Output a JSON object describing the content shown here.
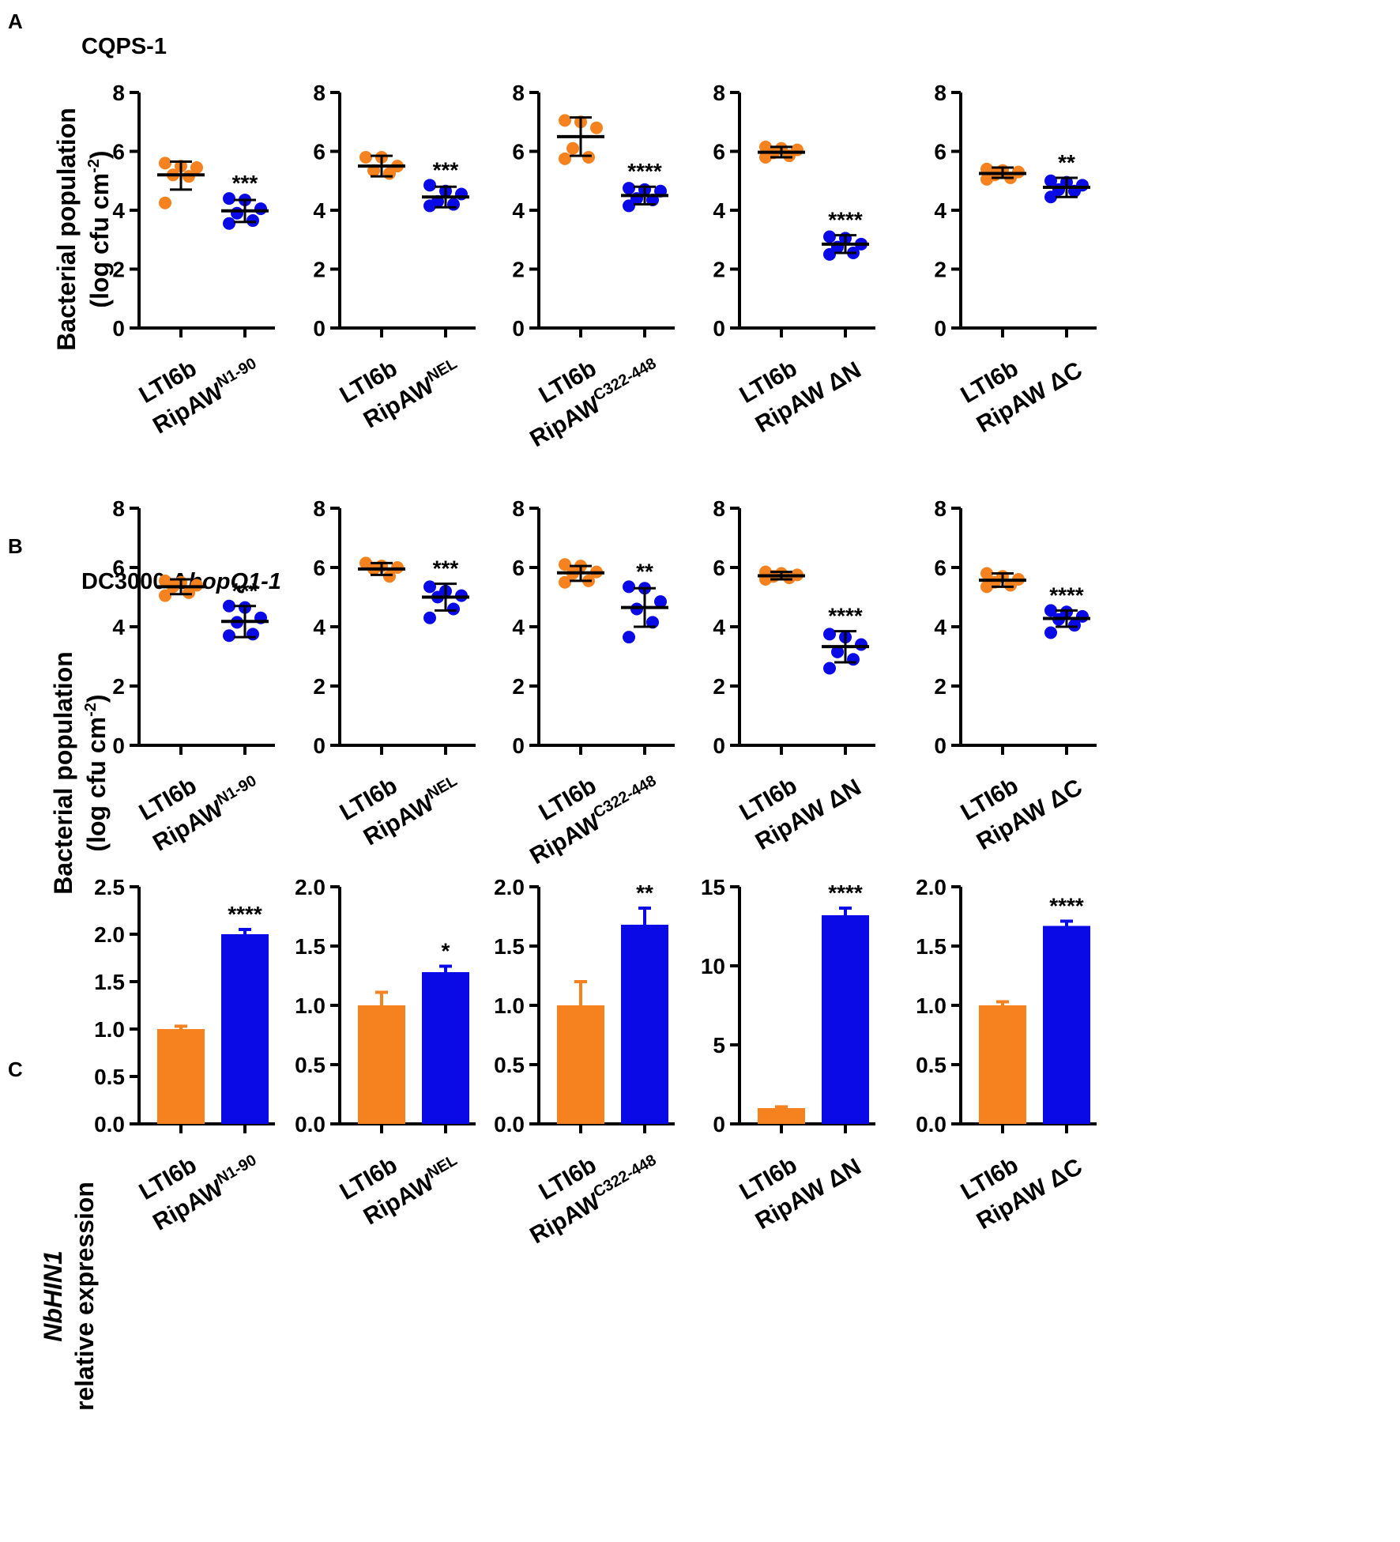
{
  "colors": {
    "control": "#F5821F",
    "treatment": "#0A0AE6",
    "axis": "#000000"
  },
  "panels": [
    {
      "letter": "A",
      "title": "CQPS-1"
    },
    {
      "letter": "B",
      "title_main": "DC3000 Δ",
      "title_italic": "hopQ1-1"
    },
    {
      "letter": "C"
    }
  ],
  "y_labels": {
    "A": {
      "line1": "Bacterial population",
      "line2_pre": "(log cfu cm",
      "line2_sup": "-2",
      "line2_post": ")"
    },
    "B": {
      "line1": "Bacterial population",
      "line2_pre": "(log cfu cm",
      "line2_sup": "-2",
      "line2_post": ")"
    },
    "C": {
      "line1": "NbHIN1",
      "line2": "relative expression"
    }
  },
  "category_labels": [
    {
      "first": "LTI6b",
      "second_main": "RipAW",
      "second_sup": "N1-90"
    },
    {
      "first": "LTI6b",
      "second_main": "RipAW",
      "second_sup": "NEL"
    },
    {
      "first": "LTI6b",
      "second_main": "RipAW",
      "second_sup": "C322-448"
    },
    {
      "first": "LTI6b",
      "second_main": "RipAW ΔN",
      "second_sup": ""
    },
    {
      "first": "LTI6b",
      "second_main": "RipAW ΔC",
      "second_sup": ""
    }
  ],
  "chart_data": [
    {
      "panel": "A",
      "index": 0,
      "type": "scatter",
      "ylim": [
        0,
        8
      ],
      "ticks": [
        0,
        2,
        4,
        6,
        8
      ],
      "tick_labels": [
        "0",
        "2",
        "4",
        "6",
        "8"
      ],
      "categories": [
        "LTI6b",
        "RipAW N1-90"
      ],
      "series": [
        {
          "name": "LTI6b",
          "points": [
            5.6,
            5.5,
            5.45,
            5.2,
            5.15,
            4.25
          ],
          "mean": 5.2,
          "err": [
            4.7,
            5.65
          ]
        },
        {
          "name": "RipAW N1-90",
          "points": [
            4.4,
            4.35,
            4.05,
            3.9,
            3.65,
            3.55
          ],
          "mean": 3.98,
          "err": [
            3.6,
            4.35
          ]
        }
      ],
      "significance": "***"
    },
    {
      "panel": "A",
      "index": 1,
      "type": "scatter",
      "ylim": [
        0,
        8
      ],
      "ticks": [
        0,
        2,
        4,
        6,
        8
      ],
      "tick_labels": [
        "0",
        "2",
        "4",
        "6",
        "8"
      ],
      "categories": [
        "LTI6b",
        "RipAW NEL"
      ],
      "series": [
        {
          "name": "LTI6b",
          "points": [
            5.8,
            5.8,
            5.5,
            5.35,
            5.25
          ],
          "mean": 5.5,
          "err": [
            5.15,
            5.85
          ]
        },
        {
          "name": "RipAW NEL",
          "points": [
            4.85,
            4.65,
            4.55,
            4.3,
            4.2,
            4.15
          ],
          "mean": 4.45,
          "err": [
            4.1,
            4.8
          ]
        }
      ],
      "significance": "***"
    },
    {
      "panel": "A",
      "index": 2,
      "type": "scatter",
      "ylim": [
        0,
        8
      ],
      "ticks": [
        0,
        2,
        4,
        6,
        8
      ],
      "tick_labels": [
        "0",
        "2",
        "4",
        "6",
        "8"
      ],
      "categories": [
        "LTI6b",
        "RipAW C322-448"
      ],
      "series": [
        {
          "name": "LTI6b",
          "points": [
            7.05,
            7.0,
            6.8,
            6.1,
            5.8,
            5.75
          ],
          "mean": 6.5,
          "err": [
            5.85,
            7.15
          ]
        },
        {
          "name": "RipAW C322-448",
          "points": [
            4.75,
            4.7,
            4.65,
            4.4,
            4.35,
            4.15
          ],
          "mean": 4.5,
          "err": [
            4.2,
            4.8
          ]
        }
      ],
      "significance": "****"
    },
    {
      "panel": "A",
      "index": 3,
      "type": "scatter",
      "ylim": [
        0,
        8
      ],
      "ticks": [
        0,
        2,
        4,
        6,
        8
      ],
      "tick_labels": [
        "0",
        "2",
        "4",
        "6",
        "8"
      ],
      "categories": [
        "LTI6b",
        "RipAW ΔN"
      ],
      "series": [
        {
          "name": "LTI6b",
          "points": [
            6.15,
            6.1,
            6.05,
            5.95,
            5.85,
            5.8
          ],
          "mean": 5.97,
          "err": [
            5.8,
            6.15
          ]
        },
        {
          "name": "RipAW ΔN",
          "points": [
            3.1,
            3.05,
            2.85,
            2.75,
            2.55,
            2.5
          ],
          "mean": 2.85,
          "err": [
            2.55,
            3.15
          ]
        }
      ],
      "significance": "****"
    },
    {
      "panel": "A",
      "index": 4,
      "type": "scatter",
      "ylim": [
        0,
        8
      ],
      "ticks": [
        0,
        2,
        4,
        6,
        8
      ],
      "tick_labels": [
        "0",
        "2",
        "4",
        "6",
        "8"
      ],
      "categories": [
        "LTI6b",
        "RipAW ΔC"
      ],
      "series": [
        {
          "name": "LTI6b",
          "points": [
            5.4,
            5.35,
            5.3,
            5.2,
            5.1,
            5.05
          ],
          "mean": 5.25,
          "err": [
            5.1,
            5.45
          ]
        },
        {
          "name": "RipAW ΔC",
          "points": [
            5.0,
            4.95,
            4.85,
            4.7,
            4.65,
            4.45
          ],
          "mean": 4.78,
          "err": [
            4.45,
            5.1
          ]
        }
      ],
      "significance": "**"
    },
    {
      "panel": "B",
      "index": 0,
      "type": "scatter",
      "ylim": [
        0,
        8
      ],
      "ticks": [
        0,
        2,
        4,
        6,
        8
      ],
      "tick_labels": [
        "0",
        "2",
        "4",
        "6",
        "8"
      ],
      "categories": [
        "LTI6b",
        "RipAW N1-90"
      ],
      "series": [
        {
          "name": "LTI6b",
          "points": [
            5.55,
            5.5,
            5.4,
            5.35,
            5.15,
            5.05
          ],
          "mean": 5.35,
          "err": [
            5.1,
            5.6
          ]
        },
        {
          "name": "RipAW N1-90",
          "points": [
            4.7,
            4.65,
            4.3,
            4.15,
            3.75,
            3.7
          ],
          "mean": 4.18,
          "err": [
            3.65,
            4.7
          ]
        }
      ],
      "significance": "***"
    },
    {
      "panel": "B",
      "index": 1,
      "type": "scatter",
      "ylim": [
        0,
        8
      ],
      "ticks": [
        0,
        2,
        4,
        6,
        8
      ],
      "tick_labels": [
        "0",
        "2",
        "4",
        "6",
        "8"
      ],
      "categories": [
        "LTI6b",
        "RipAW NEL"
      ],
      "series": [
        {
          "name": "LTI6b",
          "points": [
            6.15,
            6.05,
            6.0,
            5.95,
            5.7
          ],
          "mean": 5.95,
          "err": [
            5.75,
            6.15
          ]
        },
        {
          "name": "RipAW NEL",
          "points": [
            5.35,
            5.2,
            5.05,
            5.0,
            4.6,
            4.3
          ],
          "mean": 5.0,
          "err": [
            4.55,
            5.45
          ]
        }
      ],
      "significance": "***"
    },
    {
      "panel": "B",
      "index": 2,
      "type": "scatter",
      "ylim": [
        0,
        8
      ],
      "ticks": [
        0,
        2,
        4,
        6,
        8
      ],
      "tick_labels": [
        "0",
        "2",
        "4",
        "6",
        "8"
      ],
      "categories": [
        "LTI6b",
        "RipAW C322-448"
      ],
      "series": [
        {
          "name": "LTI6b",
          "points": [
            6.1,
            6.05,
            5.85,
            5.8,
            5.55,
            5.5
          ],
          "mean": 5.82,
          "err": [
            5.55,
            6.05
          ]
        },
        {
          "name": "RipAW C322-448",
          "points": [
            5.35,
            5.3,
            4.85,
            4.6,
            4.15,
            3.65
          ],
          "mean": 4.65,
          "err": [
            4.0,
            5.3
          ]
        }
      ],
      "significance": "**"
    },
    {
      "panel": "B",
      "index": 3,
      "type": "scatter",
      "ylim": [
        0,
        8
      ],
      "ticks": [
        0,
        2,
        4,
        6,
        8
      ],
      "tick_labels": [
        "0",
        "2",
        "4",
        "6",
        "8"
      ],
      "categories": [
        "LTI6b",
        "RipAW ΔN"
      ],
      "series": [
        {
          "name": "LTI6b",
          "points": [
            5.85,
            5.8,
            5.75,
            5.7,
            5.65,
            5.6
          ],
          "mean": 5.72,
          "err": [
            5.6,
            5.85
          ]
        },
        {
          "name": "RipAW ΔN",
          "points": [
            3.75,
            3.65,
            3.4,
            3.15,
            2.9,
            2.6
          ],
          "mean": 3.33,
          "err": [
            2.8,
            3.85
          ]
        }
      ],
      "significance": "****"
    },
    {
      "panel": "B",
      "index": 4,
      "type": "scatter",
      "ylim": [
        0,
        8
      ],
      "ticks": [
        0,
        2,
        4,
        6,
        8
      ],
      "tick_labels": [
        "0",
        "2",
        "4",
        "6",
        "8"
      ],
      "categories": [
        "LTI6b",
        "RipAW ΔC"
      ],
      "series": [
        {
          "name": "LTI6b",
          "points": [
            5.8,
            5.7,
            5.6,
            5.5,
            5.4,
            5.35
          ],
          "mean": 5.57,
          "err": [
            5.35,
            5.8
          ]
        },
        {
          "name": "RipAW ΔC",
          "points": [
            4.55,
            4.5,
            4.35,
            4.25,
            4.05,
            3.8
          ],
          "mean": 4.28,
          "err": [
            4.0,
            4.55
          ]
        }
      ],
      "significance": "****"
    },
    {
      "panel": "C",
      "index": 0,
      "type": "bar",
      "ylim": [
        0,
        2.5
      ],
      "ticks": [
        0,
        0.5,
        1,
        1.5,
        2,
        2.5
      ],
      "tick_labels": [
        "0.0",
        "0.5",
        "1.0",
        "1.5",
        "2.0",
        "2.5"
      ],
      "categories": [
        "LTI6b",
        "RipAW N1-90"
      ],
      "values": [
        1.0,
        2.0
      ],
      "errors": [
        0.03,
        0.05
      ],
      "significance": "****"
    },
    {
      "panel": "C",
      "index": 1,
      "type": "bar",
      "ylim": [
        0,
        2.0
      ],
      "ticks": [
        0,
        0.5,
        1,
        1.5,
        2
      ],
      "tick_labels": [
        "0.0",
        "0.5",
        "1.0",
        "1.5",
        "2.0"
      ],
      "categories": [
        "LTI6b",
        "RipAW NEL"
      ],
      "values": [
        1.0,
        1.28
      ],
      "errors": [
        0.11,
        0.05
      ],
      "significance": "*"
    },
    {
      "panel": "C",
      "index": 2,
      "type": "bar",
      "ylim": [
        0,
        2.0
      ],
      "ticks": [
        0,
        0.5,
        1,
        1.5,
        2
      ],
      "tick_labels": [
        "0.0",
        "0.5",
        "1.0",
        "1.5",
        "2.0"
      ],
      "categories": [
        "LTI6b",
        "RipAW C322-448"
      ],
      "values": [
        1.0,
        1.68
      ],
      "errors": [
        0.2,
        0.14
      ],
      "significance": "**"
    },
    {
      "panel": "C",
      "index": 3,
      "type": "bar",
      "ylim": [
        0,
        15
      ],
      "ticks": [
        0,
        5,
        10,
        15
      ],
      "tick_labels": [
        "0",
        "5",
        "10",
        "15"
      ],
      "categories": [
        "LTI6b",
        "RipAW ΔN"
      ],
      "values": [
        1.0,
        13.2
      ],
      "errors": [
        0.08,
        0.45
      ],
      "significance": "****"
    },
    {
      "panel": "C",
      "index": 4,
      "type": "bar",
      "ylim": [
        0,
        2.0
      ],
      "ticks": [
        0,
        0.5,
        1,
        1.5,
        2
      ],
      "tick_labels": [
        "0.0",
        "0.5",
        "1.0",
        "1.5",
        "2.0"
      ],
      "categories": [
        "LTI6b",
        "RipAW ΔC"
      ],
      "values": [
        1.0,
        1.67
      ],
      "errors": [
        0.03,
        0.04
      ],
      "significance": "****"
    }
  ]
}
